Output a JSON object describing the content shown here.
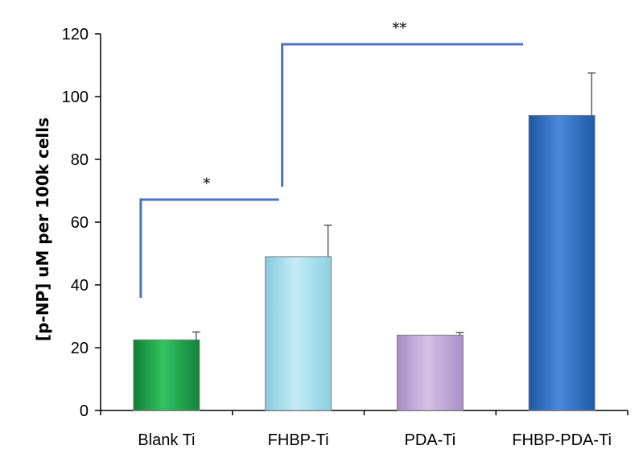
{
  "chart_data": {
    "type": "bar",
    "title": "",
    "xlabel": "",
    "ylabel": "[p-NP] uM per 100k cells",
    "ylim": [
      0,
      120
    ],
    "yticks": [
      0,
      20,
      40,
      60,
      80,
      100,
      120
    ],
    "categories": [
      "Blank Ti",
      "FHBP-Ti",
      "PDA-Ti",
      "FHBP-PDA-Ti"
    ],
    "values": [
      22.5,
      49,
      24,
      94
    ],
    "errors": [
      2.5,
      10,
      0.8,
      13.5
    ],
    "bar_colors": [
      "#1fa34a",
      "#a9dff0",
      "#c2a9d9",
      "#2f6fbf"
    ],
    "grid": false,
    "significance": [
      {
        "from": "Blank Ti",
        "to": "FHBP-Ti",
        "label": "*"
      },
      {
        "from": "FHBP-Ti",
        "to": "FHBP-PDA-Ti",
        "label": "**"
      }
    ],
    "bracket_color": "#4a72c4"
  }
}
